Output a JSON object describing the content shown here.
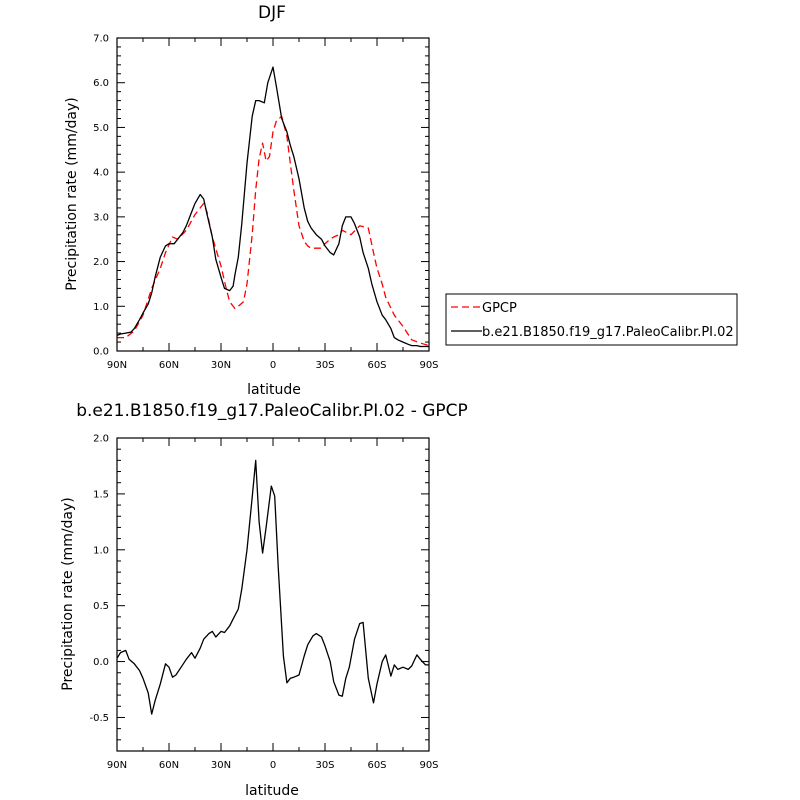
{
  "chart_data": [
    {
      "type": "line",
      "title": "DJF",
      "xlabel": "latitude",
      "ylabel": "Precipitation rate (mm/day)",
      "xlim": [
        90,
        -90
      ],
      "ylim": [
        0,
        7
      ],
      "x_ticks": [
        {
          "value": 90,
          "label": "90N"
        },
        {
          "value": 60,
          "label": "60N"
        },
        {
          "value": 30,
          "label": "30N"
        },
        {
          "value": 0,
          "label": "0"
        },
        {
          "value": -30,
          "label": "30S"
        },
        {
          "value": -60,
          "label": "60S"
        },
        {
          "value": -90,
          "label": "90S"
        }
      ],
      "y_ticks": [
        {
          "value": 0,
          "label": "0.0"
        },
        {
          "value": 1,
          "label": "1.0"
        },
        {
          "value": 2,
          "label": "2.0"
        },
        {
          "value": 3,
          "label": "3.0"
        },
        {
          "value": 4,
          "label": "4.0"
        },
        {
          "value": 5,
          "label": "5.0"
        },
        {
          "value": 6,
          "label": "6.0"
        },
        {
          "value": 7,
          "label": "7.0"
        }
      ],
      "legend": {
        "placement": "right",
        "entries": [
          "GPCP",
          "b.e21.B1850.f19_g17.PaleoCalibr.PI.02"
        ]
      },
      "series": [
        {
          "name": "GPCP",
          "color": "#ff0000",
          "dash": true,
          "x": [
            90,
            85,
            80,
            75,
            70,
            65,
            62,
            58,
            55,
            50,
            45,
            40,
            38,
            35,
            30,
            27,
            25,
            22,
            20,
            17,
            15,
            12,
            10,
            8,
            6,
            4,
            2,
            0,
            -2,
            -5,
            -8,
            -10,
            -12,
            -15,
            -18,
            -20,
            -22,
            -25,
            -28,
            -30,
            -33,
            -35,
            -38,
            -40,
            -45,
            -50,
            -55,
            -58,
            -60,
            -63,
            -65,
            -70,
            -75,
            -80,
            -85,
            -90
          ],
          "y": [
            0.3,
            0.3,
            0.45,
            0.8,
            1.4,
            1.85,
            2.2,
            2.55,
            2.5,
            2.7,
            3.05,
            3.3,
            3.1,
            2.55,
            1.9,
            1.4,
            1.1,
            0.95,
            1.0,
            1.1,
            1.5,
            2.6,
            3.6,
            4.3,
            4.65,
            4.25,
            4.35,
            4.9,
            5.15,
            5.25,
            4.8,
            4.2,
            3.6,
            2.8,
            2.45,
            2.35,
            2.3,
            2.3,
            2.3,
            2.4,
            2.5,
            2.55,
            2.6,
            2.7,
            2.6,
            2.8,
            2.75,
            2.2,
            1.85,
            1.5,
            1.2,
            0.8,
            0.55,
            0.25,
            0.18,
            0.12
          ]
        },
        {
          "name": "b.e21.B1850.f19_g17.PaleoCalibr.PI.02",
          "color": "#000000",
          "dash": false,
          "x": [
            90,
            88,
            85,
            82,
            80,
            77,
            75,
            72,
            70,
            68,
            65,
            62,
            60,
            57,
            55,
            52,
            50,
            47,
            45,
            42,
            40,
            38,
            35,
            33,
            30,
            28,
            25,
            23,
            22,
            20,
            18,
            15,
            12,
            10,
            8,
            5,
            3,
            0,
            -2,
            -5,
            -8,
            -10,
            -12,
            -15,
            -18,
            -20,
            -22,
            -25,
            -28,
            -30,
            -33,
            -35,
            -38,
            -40,
            -42,
            -45,
            -47,
            -50,
            -52,
            -55,
            -57,
            -60,
            -63,
            -65,
            -68,
            -70,
            -72,
            -75,
            -78,
            -80,
            -83,
            -85,
            -88,
            -90
          ],
          "y": [
            0.35,
            0.38,
            0.4,
            0.42,
            0.5,
            0.7,
            0.85,
            1.05,
            1.3,
            1.65,
            2.1,
            2.35,
            2.4,
            2.4,
            2.5,
            2.65,
            2.8,
            3.1,
            3.3,
            3.5,
            3.4,
            3.05,
            2.55,
            2.05,
            1.65,
            1.4,
            1.35,
            1.45,
            1.7,
            2.1,
            2.85,
            4.2,
            5.25,
            5.6,
            5.6,
            5.55,
            6.0,
            6.35,
            5.9,
            5.2,
            4.9,
            4.6,
            4.35,
            3.85,
            3.2,
            2.9,
            2.75,
            2.6,
            2.5,
            2.35,
            2.2,
            2.15,
            2.4,
            2.8,
            3.0,
            3.0,
            2.85,
            2.55,
            2.2,
            1.85,
            1.5,
            1.1,
            0.8,
            0.7,
            0.5,
            0.3,
            0.25,
            0.2,
            0.15,
            0.12,
            0.12,
            0.1,
            0.1,
            0.1
          ]
        }
      ]
    },
    {
      "type": "line",
      "title": "b.e21.B1850.f19_g17.PaleoCalibr.PI.02 - GPCP",
      "xlabel": "latitude",
      "ylabel": "Precipitation rate (mm/day)",
      "xlim": [
        90,
        -90
      ],
      "ylim": [
        -0.8,
        2.0
      ],
      "x_ticks": [
        {
          "value": 90,
          "label": "90N"
        },
        {
          "value": 60,
          "label": "60N"
        },
        {
          "value": 30,
          "label": "30N"
        },
        {
          "value": 0,
          "label": "0"
        },
        {
          "value": -30,
          "label": "30S"
        },
        {
          "value": -60,
          "label": "60S"
        },
        {
          "value": -90,
          "label": "90S"
        }
      ],
      "y_ticks": [
        {
          "value": -0.5,
          "label": "-0.5"
        },
        {
          "value": 0,
          "label": "0.0"
        },
        {
          "value": 0.5,
          "label": "0.5"
        },
        {
          "value": 1.0,
          "label": "1.0"
        },
        {
          "value": 1.5,
          "label": "1.5"
        },
        {
          "value": 2.0,
          "label": "2.0"
        }
      ],
      "series": [
        {
          "color": "#000000",
          "dash": false,
          "x": [
            90,
            88,
            85,
            83,
            80,
            77,
            75,
            72,
            70,
            68,
            65,
            62,
            60,
            58,
            56,
            53,
            50,
            47,
            45,
            42,
            40,
            37,
            35,
            33,
            30,
            28,
            25,
            23,
            20,
            18,
            15,
            12,
            10,
            8,
            6,
            4,
            1,
            -1,
            -3,
            -6,
            -8,
            -10,
            -12,
            -15,
            -18,
            -20,
            -23,
            -25,
            -28,
            -30,
            -33,
            -35,
            -38,
            -40,
            -42,
            -44,
            -47,
            -50,
            -52,
            -55,
            -58,
            -60,
            -63,
            -65,
            -68,
            -70,
            -72,
            -75,
            -78,
            -80,
            -83,
            -85,
            -88,
            -90
          ],
          "y": [
            0.03,
            0.08,
            0.1,
            0.02,
            -0.02,
            -0.08,
            -0.15,
            -0.28,
            -0.47,
            -0.35,
            -0.2,
            -0.02,
            -0.05,
            -0.14,
            -0.12,
            -0.05,
            0.02,
            0.08,
            0.03,
            0.12,
            0.2,
            0.25,
            0.27,
            0.22,
            0.27,
            0.26,
            0.32,
            0.38,
            0.47,
            0.65,
            1.0,
            1.47,
            1.8,
            1.25,
            0.97,
            1.2,
            1.57,
            1.48,
            0.85,
            0.05,
            -0.19,
            -0.15,
            -0.14,
            -0.12,
            0.05,
            0.15,
            0.23,
            0.25,
            0.22,
            0.14,
            0.0,
            -0.18,
            -0.3,
            -0.31,
            -0.15,
            -0.05,
            0.2,
            0.34,
            0.35,
            -0.15,
            -0.37,
            -0.2,
            0.0,
            0.06,
            -0.13,
            -0.03,
            -0.07,
            -0.05,
            -0.07,
            -0.04,
            0.06,
            0.02,
            -0.03,
            -0.03
          ]
        }
      ]
    }
  ]
}
